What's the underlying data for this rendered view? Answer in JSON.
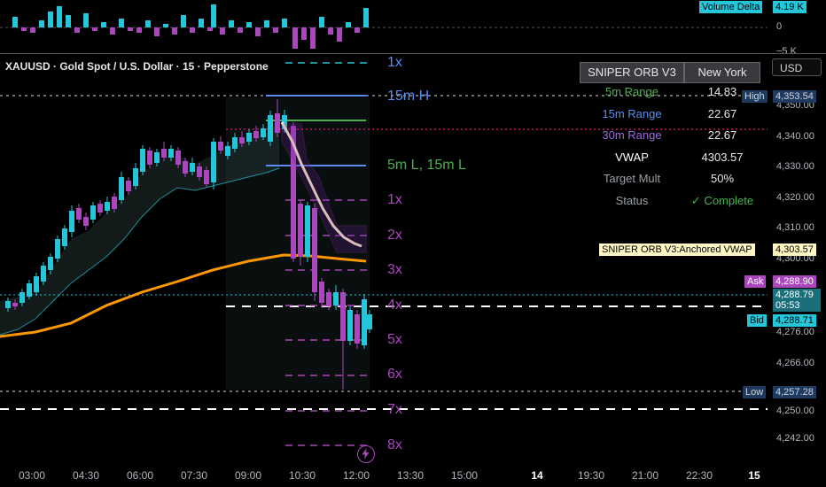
{
  "symbol_title": "XAUUSD · Gold Spot / U.S. Dollar · 15 · Pepperstone",
  "currency_button": "USD",
  "volume_delta": {
    "label": "Volume Delta",
    "value": "4.19 K",
    "zero": "0",
    "neg": "−5 K"
  },
  "orb_table": {
    "title": "SNIPER ORB V3",
    "session": "New York",
    "rows": [
      {
        "label": "5m Range",
        "value": "14.83",
        "color": "#4caf50"
      },
      {
        "label": "15m Range",
        "value": "22.67",
        "color": "#5b8cf0"
      },
      {
        "label": "30m Range",
        "value": "22.67",
        "color": "#9c6ade"
      },
      {
        "label": "VWAP",
        "value": "4303.57",
        "color": "#ffffff"
      },
      {
        "label": "Target Mult",
        "value": "50%",
        "color": "#9aa0a6"
      },
      {
        "label": "Status",
        "value": "✓ Complete",
        "status_color": "#4caf50",
        "color": "#9aa0a6"
      }
    ]
  },
  "chart_labels": {
    "m15_h": "15m H",
    "m5l_15ml": "5m L, 15m L",
    "up_1x": "1x",
    "mults": [
      "1x",
      "2x",
      "3x",
      "4x",
      "5x",
      "6x",
      "7x",
      "8x"
    ]
  },
  "price_axis": {
    "ticks": [
      "4,350.00",
      "4,340.00",
      "4,330.00",
      "4,320.00",
      "4,310.00",
      "4,300.00",
      "4,276.00",
      "4,266.00",
      "4,250.00",
      "4,242.00"
    ],
    "tags": {
      "high": {
        "label": "High",
        "value": "4,353.54"
      },
      "vwap": {
        "label": "SNIPER ORB V3:Anchored VWAP",
        "value": "4,303.57"
      },
      "ask": {
        "label": "Ask",
        "value": "4,288.90"
      },
      "last": {
        "value": "4,288.79",
        "countdown": "05:53"
      },
      "bid": {
        "label": "Bid",
        "value": "4,288.71"
      },
      "low": {
        "label": "Low",
        "value": "4,257.28"
      }
    }
  },
  "time_axis": [
    "03:00",
    "04:30",
    "06:00",
    "07:30",
    "09:00",
    "10:30",
    "12:00",
    "13:30",
    "15:00",
    "14",
    "19:30",
    "21:00",
    "22:30",
    "15"
  ],
  "colors": {
    "up": "#26c6da",
    "down": "#ab47bc",
    "vwap": "#fff6c4",
    "ema": "#ff9800",
    "blue_band": "#26c6da"
  },
  "icons": {
    "lightning": "lightning-icon"
  }
}
